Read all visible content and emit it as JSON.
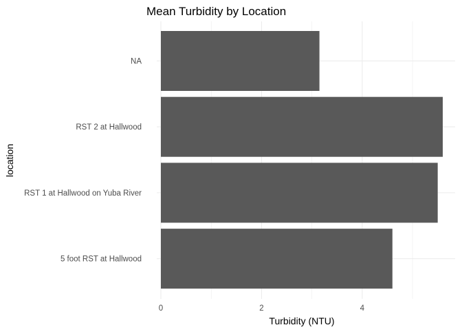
{
  "chart_data": {
    "type": "bar",
    "orientation": "horizontal",
    "title": "Mean Turbidity by Location",
    "xlabel": "Turbidity (NTU)",
    "ylabel": "location",
    "categories": [
      "5 foot RST at Hallwood",
      "RST 1 at Hallwood on Yuba River",
      "RST 2 at Hallwood",
      "NA"
    ],
    "values": [
      4.6,
      5.5,
      5.6,
      3.15
    ],
    "xlim": [
      0,
      5.6
    ],
    "x_ticks": [
      "0",
      "2",
      "4"
    ],
    "grid": true,
    "bar_color": "#595959"
  }
}
